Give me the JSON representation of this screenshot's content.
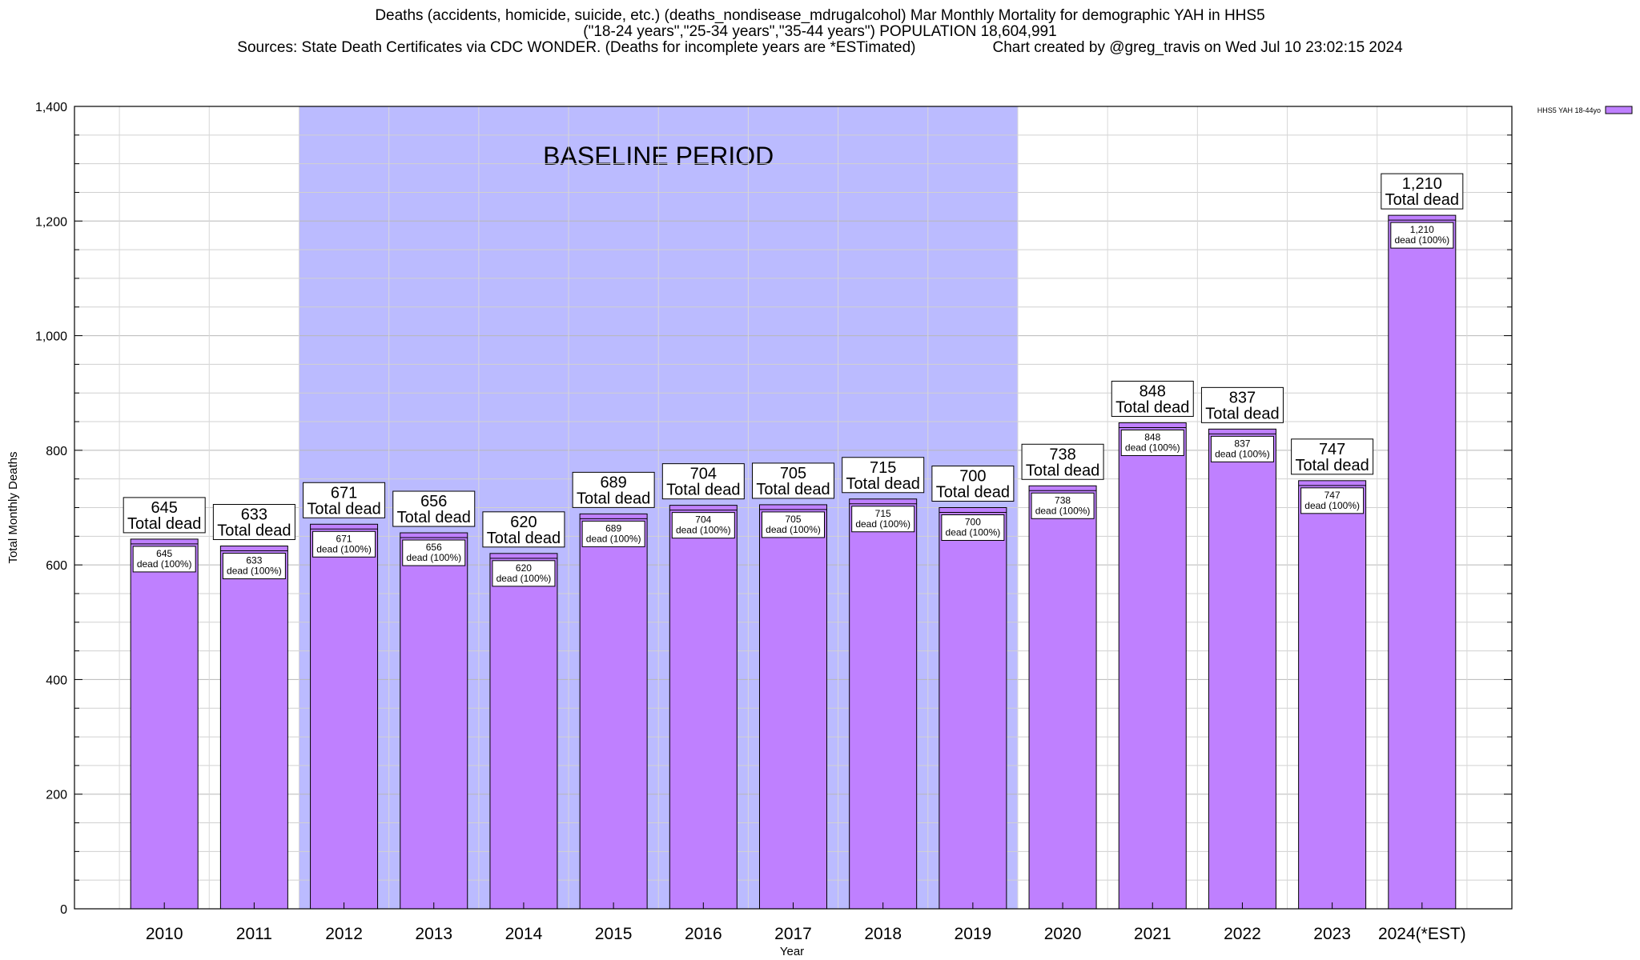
{
  "header": {
    "line1": "Deaths (accidents, homicide, suicide, etc.) (deaths_nondisease_mdrugalcohol) Mar Monthly Mortality for demographic YAH in HHS5",
    "line2": "(\"18-24 years\",\"25-34 years\",\"35-44 years\") POPULATION 18,604,991",
    "line3_left": "Sources: State Death Certificates via CDC WONDER. (Deaths for incomplete years are *ESTimated)",
    "line3_right": "Chart created by @greg_travis on Wed Jul 10 23:02:15 2024"
  },
  "chart_data": {
    "type": "bar",
    "title": "",
    "xlabel": "Year",
    "ylabel": "Total Monthly Deaths",
    "ylim": [
      0,
      1400
    ],
    "yticks": [
      "0",
      "200",
      "400",
      "600",
      "800",
      "1,000",
      "1,200",
      "1,400"
    ],
    "grid": true,
    "legend_position": "top-right",
    "categories": [
      "2010",
      "2011",
      "2012",
      "2013",
      "2014",
      "2015",
      "2016",
      "2017",
      "2018",
      "2019",
      "2020",
      "2021",
      "2022",
      "2023",
      "2024(*EST)"
    ],
    "series": [
      {
        "name": "HHS5 YAH 18-44yo",
        "color": "#bf80ff",
        "values": [
          645,
          633,
          671,
          656,
          620,
          689,
          704,
          705,
          715,
          700,
          738,
          848,
          837,
          747,
          1210
        ]
      }
    ],
    "value_labels": [
      "645",
      "633",
      "671",
      "656",
      "620",
      "689",
      "704",
      "705",
      "715",
      "700",
      "738",
      "848",
      "837",
      "747",
      "1,210"
    ],
    "total_label_suffix": "Total dead",
    "inner_label_suffix": "dead (100%)",
    "baseline_period": {
      "label": "BASELINE PERIOD",
      "start": "2012",
      "end": "2019",
      "color": "#bbbbff"
    }
  }
}
